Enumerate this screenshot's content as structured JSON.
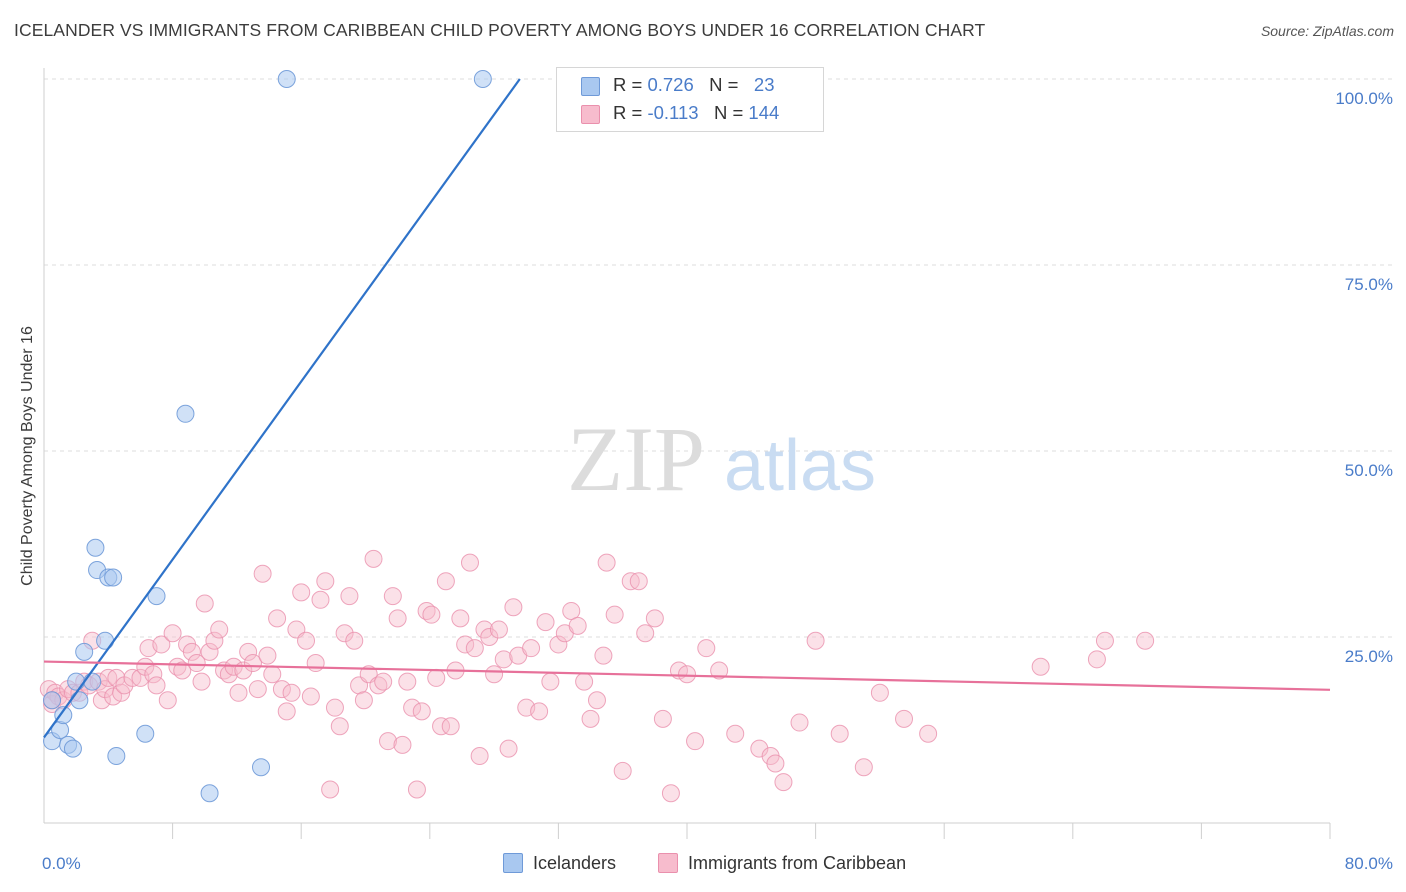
{
  "header": {
    "title": "ICELANDER VS IMMIGRANTS FROM CARIBBEAN CHILD POVERTY AMONG BOYS UNDER 16 CORRELATION CHART",
    "source": "Source: ZipAtlas.com"
  },
  "watermark": {
    "zip": "ZIP",
    "atlas": "atlas"
  },
  "legend": {
    "rows": [
      {
        "r_label": "R = ",
        "r_value": "0.726",
        "n_label": "N = ",
        "n_value": "23",
        "color": "#a9c8f0"
      },
      {
        "r_label": "R = ",
        "r_value": "-0.113",
        "n_label": "N = ",
        "n_value": "144",
        "color": "#f7b8cc"
      }
    ]
  },
  "bottom_legend": {
    "icelanders": "Icelanders",
    "caribbean": "Immigrants from Caribbean"
  },
  "colors": {
    "blue_fill": "#a9c8f0",
    "blue_stroke": "#6f9ad8",
    "blue_line": "#2f73c9",
    "pink_fill": "#f7bccd",
    "pink_stroke": "#ea90ad",
    "pink_line": "#e7719a",
    "tick_text": "#4a7cc9"
  },
  "chart_data": {
    "type": "scatter",
    "title": "ICELANDER VS IMMIGRANTS FROM CARIBBEAN CHILD POVERTY AMONG BOYS UNDER 16 CORRELATION CHART",
    "xlabel": "",
    "ylabel": "Child Poverty Among Boys Under 16",
    "xlim": [
      0,
      80
    ],
    "ylim": [
      0,
      100
    ],
    "x_tick_labels": [
      "0.0%",
      "80.0%"
    ],
    "y_ticks": [
      25,
      50,
      75,
      100
    ],
    "y_tick_labels": [
      "25.0%",
      "50.0%",
      "75.0%",
      "100.0%"
    ],
    "grid": true,
    "legend_placement": "top-center",
    "series": [
      {
        "name": "Icelanders",
        "color": "#a9c8f0",
        "points": [
          [
            0.5,
            16.5
          ],
          [
            0.5,
            11.0
          ],
          [
            1.0,
            12.5
          ],
          [
            1.2,
            14.5
          ],
          [
            1.5,
            10.5
          ],
          [
            1.8,
            10.0
          ],
          [
            2.0,
            19.0
          ],
          [
            2.2,
            16.5
          ],
          [
            2.5,
            23.0
          ],
          [
            3.0,
            19.0
          ],
          [
            3.2,
            37.0
          ],
          [
            3.3,
            34.0
          ],
          [
            3.8,
            24.5
          ],
          [
            4.0,
            33.0
          ],
          [
            4.3,
            33.0
          ],
          [
            4.5,
            9.0
          ],
          [
            6.3,
            12.0
          ],
          [
            7.0,
            30.5
          ],
          [
            8.8,
            55.0
          ],
          [
            10.3,
            4.0
          ],
          [
            13.5,
            7.5
          ],
          [
            15.1,
            100.0
          ],
          [
            27.3,
            100.0
          ]
        ],
        "trend": {
          "x": [
            0.0,
            29.6
          ],
          "y": [
            11.5,
            100.0
          ]
        }
      },
      {
        "name": "Immigrants from Caribbean",
        "color": "#f7bccd",
        "points": [
          [
            0.3,
            18.0
          ],
          [
            0.5,
            16.0
          ],
          [
            0.7,
            17.5
          ],
          [
            0.9,
            17.0
          ],
          [
            1.2,
            16.5
          ],
          [
            1.5,
            18.0
          ],
          [
            1.8,
            17.5
          ],
          [
            2.2,
            17.5
          ],
          [
            2.5,
            19.0
          ],
          [
            2.8,
            18.5
          ],
          [
            3.0,
            24.5
          ],
          [
            3.4,
            19.0
          ],
          [
            3.6,
            16.5
          ],
          [
            3.8,
            18.0
          ],
          [
            4.0,
            19.5
          ],
          [
            4.3,
            17.0
          ],
          [
            4.5,
            19.5
          ],
          [
            4.8,
            17.5
          ],
          [
            5.0,
            18.5
          ],
          [
            5.5,
            19.5
          ],
          [
            6.0,
            19.5
          ],
          [
            6.3,
            21.0
          ],
          [
            6.5,
            23.5
          ],
          [
            6.8,
            20.0
          ],
          [
            7.0,
            18.5
          ],
          [
            7.3,
            24.0
          ],
          [
            7.7,
            16.5
          ],
          [
            8.0,
            25.5
          ],
          [
            8.3,
            21.0
          ],
          [
            8.6,
            20.5
          ],
          [
            8.9,
            24.0
          ],
          [
            9.2,
            23.0
          ],
          [
            9.5,
            21.5
          ],
          [
            9.8,
            19.0
          ],
          [
            10.0,
            29.5
          ],
          [
            10.3,
            23.0
          ],
          [
            10.6,
            24.5
          ],
          [
            10.9,
            26.0
          ],
          [
            11.2,
            20.5
          ],
          [
            11.5,
            20.0
          ],
          [
            11.8,
            21.0
          ],
          [
            12.1,
            17.5
          ],
          [
            12.4,
            20.5
          ],
          [
            12.7,
            23.0
          ],
          [
            13.0,
            21.5
          ],
          [
            13.3,
            18.0
          ],
          [
            13.6,
            33.5
          ],
          [
            13.9,
            22.5
          ],
          [
            14.2,
            20.0
          ],
          [
            14.5,
            27.5
          ],
          [
            14.8,
            18.0
          ],
          [
            15.1,
            15.0
          ],
          [
            15.4,
            17.5
          ],
          [
            15.7,
            26.0
          ],
          [
            16.0,
            31.0
          ],
          [
            16.3,
            24.5
          ],
          [
            16.6,
            17.0
          ],
          [
            16.9,
            21.5
          ],
          [
            17.2,
            30.0
          ],
          [
            17.5,
            32.5
          ],
          [
            17.8,
            4.5
          ],
          [
            18.1,
            15.5
          ],
          [
            18.4,
            13.0
          ],
          [
            18.7,
            25.5
          ],
          [
            19.0,
            30.5
          ],
          [
            19.3,
            24.5
          ],
          [
            19.6,
            18.5
          ],
          [
            19.9,
            16.5
          ],
          [
            20.2,
            20.0
          ],
          [
            20.5,
            35.5
          ],
          [
            20.8,
            18.5
          ],
          [
            21.1,
            19.0
          ],
          [
            21.4,
            11.0
          ],
          [
            21.7,
            30.5
          ],
          [
            22.0,
            27.5
          ],
          [
            22.3,
            10.5
          ],
          [
            22.6,
            19.0
          ],
          [
            22.9,
            15.5
          ],
          [
            23.2,
            4.5
          ],
          [
            23.5,
            15.0
          ],
          [
            23.8,
            28.5
          ],
          [
            24.1,
            28.0
          ],
          [
            24.4,
            19.5
          ],
          [
            24.7,
            13.0
          ],
          [
            25.0,
            32.5
          ],
          [
            25.3,
            13.0
          ],
          [
            25.6,
            20.5
          ],
          [
            25.9,
            27.5
          ],
          [
            26.2,
            24.0
          ],
          [
            26.5,
            35.0
          ],
          [
            26.8,
            23.5
          ],
          [
            27.1,
            9.0
          ],
          [
            27.4,
            26.0
          ],
          [
            27.7,
            25.0
          ],
          [
            28.0,
            20.0
          ],
          [
            28.3,
            26.0
          ],
          [
            28.6,
            22.0
          ],
          [
            28.9,
            10.0
          ],
          [
            29.2,
            29.0
          ],
          [
            29.5,
            22.5
          ],
          [
            30.0,
            15.5
          ],
          [
            30.3,
            23.5
          ],
          [
            30.8,
            15.0
          ],
          [
            31.2,
            27.0
          ],
          [
            31.5,
            19.0
          ],
          [
            32.0,
            24.0
          ],
          [
            32.4,
            25.5
          ],
          [
            32.8,
            28.5
          ],
          [
            33.2,
            26.5
          ],
          [
            33.6,
            19.0
          ],
          [
            34.0,
            14.0
          ],
          [
            34.4,
            16.5
          ],
          [
            34.8,
            22.5
          ],
          [
            35.0,
            35.0
          ],
          [
            35.5,
            28.0
          ],
          [
            36.0,
            7.0
          ],
          [
            36.5,
            32.5
          ],
          [
            37.0,
            32.5
          ],
          [
            37.4,
            25.5
          ],
          [
            38.0,
            27.5
          ],
          [
            38.5,
            14.0
          ],
          [
            39.0,
            4.0
          ],
          [
            39.5,
            20.5
          ],
          [
            40.0,
            20.0
          ],
          [
            40.5,
            11.0
          ],
          [
            41.2,
            23.5
          ],
          [
            42.0,
            20.5
          ],
          [
            43.0,
            12.0
          ],
          [
            44.5,
            10.0
          ],
          [
            45.2,
            9.0
          ],
          [
            45.5,
            8.0
          ],
          [
            46.0,
            5.5
          ],
          [
            47.0,
            13.5
          ],
          [
            48.0,
            24.5
          ],
          [
            49.5,
            12.0
          ],
          [
            51.0,
            7.5
          ],
          [
            52.0,
            17.5
          ],
          [
            53.5,
            14.0
          ],
          [
            55.0,
            12.0
          ],
          [
            62.0,
            21.0
          ],
          [
            65.5,
            22.0
          ],
          [
            66.0,
            24.5
          ],
          [
            68.5,
            24.5
          ],
          [
            0.5,
            16.5
          ]
        ],
        "trend": {
          "x": [
            0.0,
            80.0
          ],
          "y": [
            21.7,
            17.9
          ]
        }
      }
    ]
  }
}
